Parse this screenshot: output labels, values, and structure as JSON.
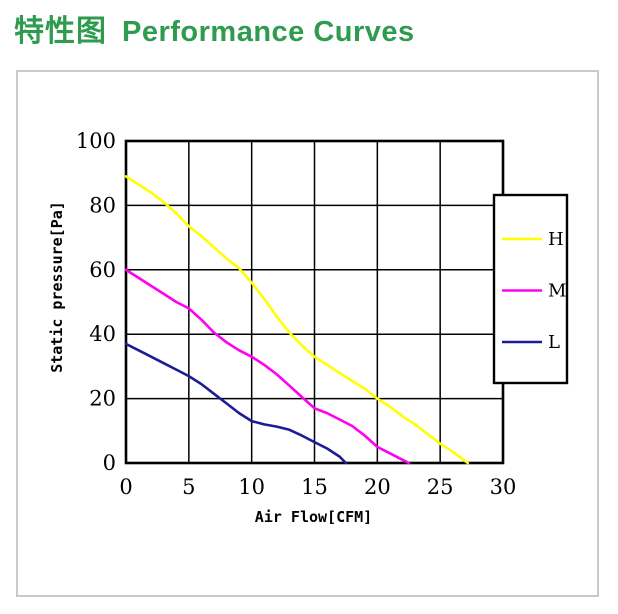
{
  "header": {
    "title_zh": "特性图",
    "title_en": "Performance Curves",
    "accent_color": "#2E9B4E"
  },
  "chart_data": {
    "type": "line",
    "title": "Performance Curves",
    "xlabel": "Air Flow[CFM]",
    "ylabel": "Static pressure[Pa]",
    "xlim": [
      0,
      30
    ],
    "ylim": [
      0,
      100
    ],
    "xticks": [
      0,
      5,
      10,
      15,
      20,
      25,
      30
    ],
    "yticks": [
      0,
      20,
      40,
      60,
      80,
      100
    ],
    "grid": true,
    "grid_color": "#000000",
    "legend_position": "right-overlay",
    "series": [
      {
        "name": "H",
        "color": "#FFFF00",
        "points": [
          [
            0,
            89
          ],
          [
            1,
            86.5
          ],
          [
            2,
            84
          ],
          [
            3,
            81
          ],
          [
            4,
            77.5
          ],
          [
            5,
            73.5
          ],
          [
            6,
            70.5
          ],
          [
            7,
            67
          ],
          [
            8,
            63.5
          ],
          [
            9,
            60.5
          ],
          [
            10,
            56
          ],
          [
            11,
            51
          ],
          [
            12,
            45.5
          ],
          [
            13,
            40.5
          ],
          [
            14,
            36.5
          ],
          [
            15,
            33
          ],
          [
            16,
            30.5
          ],
          [
            17,
            28
          ],
          [
            18,
            25.5
          ],
          [
            19,
            23
          ],
          [
            20,
            20
          ],
          [
            21,
            17.5
          ],
          [
            22,
            14.5
          ],
          [
            23,
            12
          ],
          [
            24,
            9
          ],
          [
            25,
            6
          ],
          [
            26,
            3.5
          ],
          [
            27.2,
            0
          ]
        ]
      },
      {
        "name": "M",
        "color": "#FF00F0",
        "points": [
          [
            0,
            60
          ],
          [
            1,
            57.5
          ],
          [
            2,
            55
          ],
          [
            3,
            52.5
          ],
          [
            4,
            50
          ],
          [
            5,
            48
          ],
          [
            6,
            44.5
          ],
          [
            7,
            40.5
          ],
          [
            8,
            37.5
          ],
          [
            9,
            35
          ],
          [
            10,
            33
          ],
          [
            11,
            30.5
          ],
          [
            12,
            27.5
          ],
          [
            13,
            24
          ],
          [
            14,
            20.5
          ],
          [
            15,
            17
          ],
          [
            16,
            15.5
          ],
          [
            17,
            13.5
          ],
          [
            18,
            11.5
          ],
          [
            19,
            8.5
          ],
          [
            20,
            5
          ],
          [
            21,
            3
          ],
          [
            22,
            1
          ],
          [
            22.5,
            0
          ]
        ]
      },
      {
        "name": "L",
        "color": "#1C1C96",
        "points": [
          [
            0,
            37
          ],
          [
            1,
            35
          ],
          [
            2,
            33
          ],
          [
            3,
            31
          ],
          [
            4,
            29
          ],
          [
            5,
            27
          ],
          [
            6,
            24.5
          ],
          [
            7,
            21.5
          ],
          [
            8,
            18.5
          ],
          [
            9,
            15.5
          ],
          [
            10,
            13
          ],
          [
            11,
            12
          ],
          [
            12,
            11.3
          ],
          [
            13,
            10.3
          ],
          [
            14,
            8.5
          ],
          [
            15,
            6.5
          ],
          [
            16,
            4.5
          ],
          [
            17,
            2
          ],
          [
            17.5,
            0
          ]
        ]
      }
    ]
  }
}
